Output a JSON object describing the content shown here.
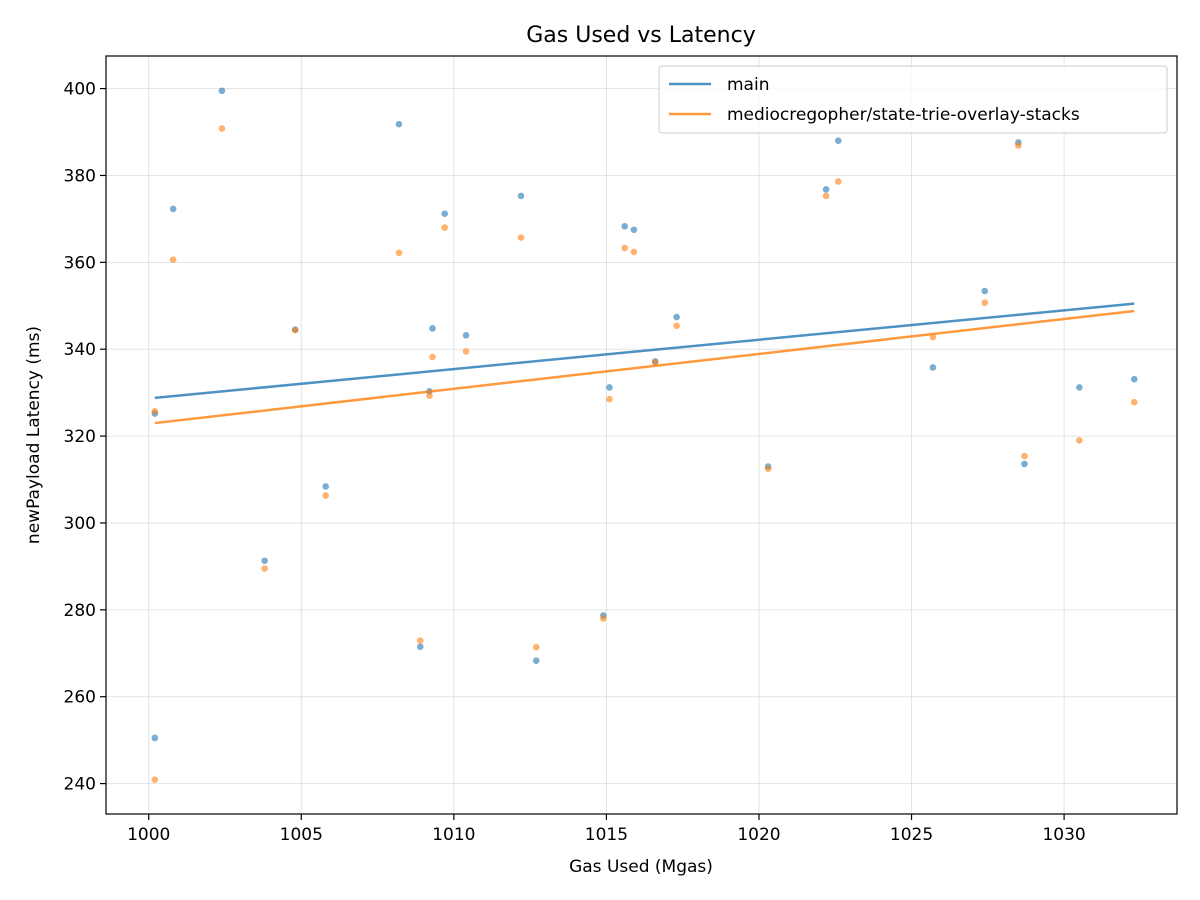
{
  "chart_data": {
    "type": "scatter",
    "title": "Gas Used vs Latency",
    "xlabel": "Gas Used (Mgas)",
    "ylabel": "newPayload Latency (ms)",
    "xlim": [
      998.6,
      1033.7
    ],
    "ylim": [
      233,
      407.5
    ],
    "xticks": [
      1000,
      1005,
      1010,
      1015,
      1020,
      1025,
      1030
    ],
    "yticks": [
      240,
      260,
      280,
      300,
      320,
      340,
      360,
      380,
      400
    ],
    "grid": true,
    "legend_position": "top-right",
    "series": [
      {
        "name": "main",
        "color": "#1f77b4",
        "x": [
          1000.2,
          1000.2,
          1000.8,
          1002.4,
          1003.8,
          1004.8,
          1005.8,
          1008.2,
          1008.9,
          1009.2,
          1009.3,
          1009.7,
          1010.4,
          1012.2,
          1012.7,
          1014.9,
          1015.1,
          1015.6,
          1015.9,
          1016.6,
          1017.3,
          1020.3,
          1022.2,
          1022.6,
          1025.7,
          1027.4,
          1028.5,
          1028.7,
          1030.5,
          1032.3
        ],
        "y": [
          250.5,
          325.2,
          372.3,
          399.5,
          291.3,
          344.5,
          308.4,
          391.8,
          271.5,
          330.3,
          344.8,
          371.2,
          343.2,
          375.3,
          268.3,
          278.7,
          331.2,
          368.3,
          367.5,
          337.2,
          347.4,
          313.0,
          376.8,
          388.0,
          335.8,
          353.4,
          387.6,
          313.6,
          331.2,
          333.1
        ],
        "trend": {
          "x": [
            1000.2,
            1032.3
          ],
          "y": [
            328.8,
            350.5
          ]
        }
      },
      {
        "name": "mediocregopher/state-trie-overlay-stacks",
        "color": "#ff7f0e",
        "x": [
          1000.2,
          1000.2,
          1000.8,
          1002.4,
          1003.8,
          1004.8,
          1005.8,
          1008.2,
          1008.9,
          1009.2,
          1009.3,
          1009.7,
          1010.4,
          1012.2,
          1012.7,
          1014.9,
          1015.1,
          1015.6,
          1015.9,
          1016.6,
          1017.3,
          1020.3,
          1022.2,
          1022.6,
          1025.7,
          1027.4,
          1028.5,
          1028.7,
          1030.5,
          1032.3
        ],
        "y": [
          240.9,
          325.7,
          360.6,
          390.8,
          289.5,
          344.4,
          306.3,
          362.2,
          272.9,
          329.3,
          338.2,
          368.0,
          339.5,
          365.7,
          271.4,
          278.0,
          328.5,
          363.3,
          362.4,
          337.0,
          345.4,
          312.5,
          375.3,
          378.6,
          342.8,
          350.7,
          386.9,
          315.4,
          319.0,
          327.8
        ],
        "trend": {
          "x": [
            1000.2,
            1032.3
          ],
          "y": [
            323.0,
            348.8
          ]
        }
      }
    ]
  }
}
